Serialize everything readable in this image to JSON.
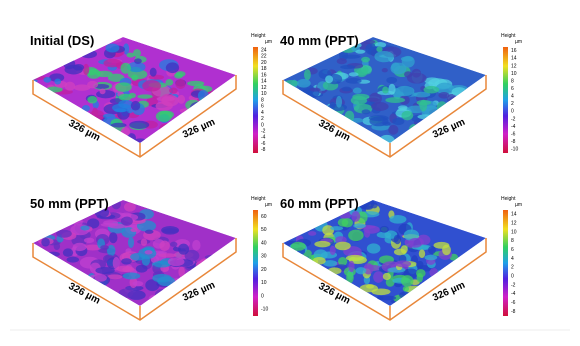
{
  "panels": [
    {
      "title": "Initial (DS)",
      "x_label": "326 µm",
      "y_label": "326 µm",
      "colorbar": {
        "title": "Height",
        "unit": "µm",
        "ticks": [
          24,
          22,
          20,
          18,
          16,
          14,
          12,
          10,
          8,
          6,
          4,
          2,
          0,
          -2,
          -4,
          -6,
          -8
        ]
      }
    },
    {
      "title": "40 mm (PPT)",
      "x_label": "326 µm",
      "y_label": "326 µm",
      "colorbar": {
        "title": "Height",
        "unit": "µm",
        "ticks": [
          16,
          14,
          12,
          10,
          8,
          6,
          4,
          2,
          0,
          -2,
          -4,
          -6,
          -8,
          -10
        ]
      }
    },
    {
      "title": "50 mm (PPT)",
      "x_label": "326 µm",
      "y_label": "326 µm",
      "colorbar": {
        "title": "Height",
        "unit": "µm",
        "ticks": [
          60,
          50,
          40,
          30,
          20,
          10,
          0,
          -10
        ]
      }
    },
    {
      "title": "60 mm (PPT)",
      "x_label": "326 µm",
      "y_label": "326 µm",
      "colorbar": {
        "title": "Height",
        "unit": "µm",
        "ticks": [
          14,
          12,
          10,
          8,
          6,
          4,
          2,
          0,
          -2,
          -4,
          -6,
          -8
        ]
      }
    }
  ]
}
